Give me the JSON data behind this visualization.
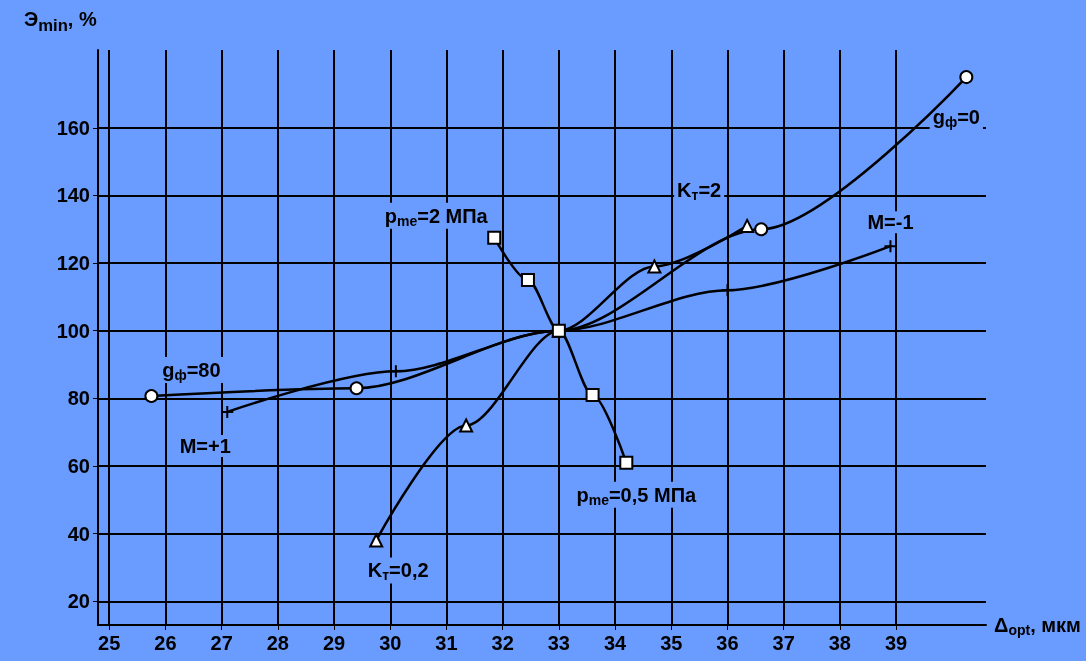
{
  "chart_data": {
    "type": "line",
    "xlabel": "Δ$_{opt}$, мкм",
    "ylabel": "Э$_{min}$, %",
    "xlim": [
      24.8,
      40.6
    ],
    "ylim": [
      13,
      183
    ],
    "xticks": [
      25,
      26,
      27,
      28,
      29,
      30,
      31,
      32,
      33,
      34,
      35,
      36,
      37,
      38,
      39
    ],
    "yticks": [
      20,
      40,
      60,
      80,
      100,
      120,
      140,
      160
    ],
    "grid": true,
    "legend": false,
    "series": [
      {
        "color": "#000000",
        "marker": "circle",
        "x": [
          25.75,
          29.4,
          33,
          36.6,
          40.25
        ],
        "values": [
          80.7,
          83,
          100,
          130,
          175
        ]
      },
      {
        "color": "#000000",
        "marker": "cross",
        "x": [
          27.1,
          30.1,
          33,
          36,
          38.9
        ],
        "values": [
          76,
          88,
          100,
          112,
          125
        ]
      },
      {
        "color": "#000000",
        "marker": "triangle",
        "x": [
          29.75,
          31.35,
          33,
          34.7,
          36.35
        ],
        "values": [
          38,
          72,
          100,
          119,
          131
        ]
      },
      {
        "color": "#000000",
        "marker": "square",
        "x": [
          31.85,
          32.45,
          33,
          33.6,
          34.2
        ],
        "values": [
          127.5,
          115,
          100,
          81,
          61
        ]
      }
    ],
    "annotations": [
      {
        "text": "g$_{ф}$=80",
        "x": 25.75,
        "y": 80.7
      },
      {
        "text": "g$_{ф}$=0",
        "x": 40.25,
        "y": 175
      },
      {
        "text": "M=+1",
        "x": 27.1,
        "y": 76
      },
      {
        "text": "M=-1",
        "x": 38.9,
        "y": 125
      },
      {
        "text": "K$_{т}$=2",
        "x": 36.35,
        "y": 131
      },
      {
        "text": "K$_{т}$=0,2",
        "x": 29.75,
        "y": 38
      },
      {
        "text": "p$_{me}$=2 МПа",
        "x": 31.85,
        "y": 127.5
      },
      {
        "text": "p$_{me}$=0,5 МПа",
        "x": 34.2,
        "y": 61
      }
    ]
  }
}
